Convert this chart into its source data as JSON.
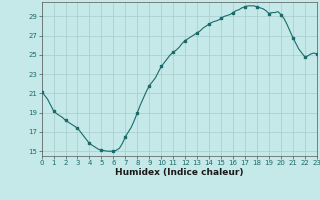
{
  "xlabel": "Humidex (Indice chaleur)",
  "background_color": "#c5e8e8",
  "grid_color": "#a8cccc",
  "line_color": "#1a6b6b",
  "marker_color": "#1a6b6b",
  "x_values": [
    0,
    0.25,
    0.5,
    0.75,
    1,
    1.25,
    1.5,
    1.75,
    2,
    2.25,
    2.5,
    2.75,
    3,
    3.25,
    3.5,
    3.75,
    4,
    4.25,
    4.5,
    4.75,
    5,
    5.25,
    5.5,
    5.75,
    6,
    6.25,
    6.5,
    6.75,
    7,
    7.25,
    7.5,
    7.75,
    8,
    8.25,
    8.5,
    8.75,
    9,
    9.25,
    9.5,
    9.75,
    10,
    10.25,
    10.5,
    10.75,
    11,
    11.25,
    11.5,
    11.75,
    12,
    12.25,
    12.5,
    12.75,
    13,
    13.25,
    13.5,
    13.75,
    14,
    14.25,
    14.5,
    14.75,
    15,
    15.25,
    15.5,
    15.75,
    16,
    16.25,
    16.5,
    16.75,
    17,
    17.25,
    17.5,
    17.75,
    18,
    18.25,
    18.5,
    18.75,
    19,
    19.25,
    19.5,
    19.75,
    20,
    20.25,
    20.5,
    20.75,
    21,
    21.25,
    21.5,
    21.75,
    22,
    22.25,
    22.5,
    22.75,
    23
  ],
  "y_values": [
    21.2,
    20.8,
    20.4,
    19.8,
    19.2,
    18.9,
    18.7,
    18.5,
    18.2,
    18.0,
    17.8,
    17.6,
    17.4,
    17.0,
    16.6,
    16.2,
    15.8,
    15.6,
    15.4,
    15.2,
    15.1,
    15.05,
    15.0,
    15.0,
    15.0,
    15.1,
    15.3,
    15.8,
    16.5,
    17.0,
    17.5,
    18.2,
    19.0,
    19.8,
    20.5,
    21.2,
    21.8,
    22.2,
    22.6,
    23.2,
    23.8,
    24.2,
    24.6,
    25.0,
    25.3,
    25.5,
    25.8,
    26.2,
    26.5,
    26.7,
    26.9,
    27.1,
    27.3,
    27.5,
    27.8,
    28.0,
    28.2,
    28.4,
    28.5,
    28.6,
    28.8,
    29.0,
    29.1,
    29.2,
    29.4,
    29.6,
    29.7,
    29.9,
    30.0,
    30.1,
    30.1,
    30.1,
    30.0,
    29.9,
    29.8,
    29.6,
    29.3,
    29.4,
    29.4,
    29.5,
    29.2,
    28.8,
    28.2,
    27.5,
    26.8,
    26.2,
    25.6,
    25.2,
    24.8,
    24.9,
    25.1,
    25.2,
    25.1
  ],
  "marker_x": [
    0,
    1,
    2,
    3,
    4,
    5,
    6,
    7,
    8,
    9,
    10,
    11,
    12,
    13,
    14,
    15,
    16,
    17,
    18,
    19,
    20,
    21,
    22,
    23
  ],
  "marker_y": [
    21.2,
    19.2,
    18.2,
    17.4,
    15.8,
    15.1,
    15.0,
    16.5,
    19.0,
    21.8,
    23.8,
    25.3,
    26.5,
    27.3,
    28.2,
    28.8,
    29.4,
    30.0,
    30.0,
    29.3,
    29.2,
    26.8,
    24.8,
    25.1
  ],
  "xlim": [
    0,
    23
  ],
  "ylim": [
    14.5,
    30.5
  ],
  "yticks": [
    15,
    17,
    19,
    21,
    23,
    25,
    27,
    29
  ],
  "xticks": [
    0,
    1,
    2,
    3,
    4,
    5,
    6,
    7,
    8,
    9,
    10,
    11,
    12,
    13,
    14,
    15,
    16,
    17,
    18,
    19,
    20,
    21,
    22,
    23
  ]
}
